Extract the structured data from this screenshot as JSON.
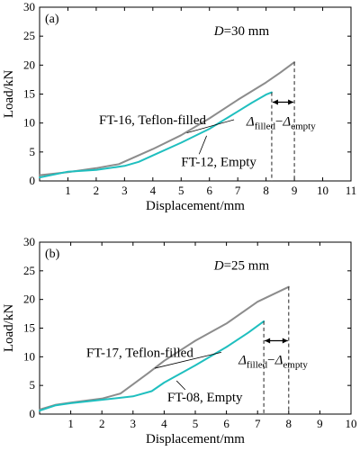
{
  "chart_data": [
    {
      "type": "line",
      "panel_tag": "(a)",
      "param_label": {
        "italic": "D",
        "rest": "=30 mm"
      },
      "xlabel": "Displacement/mm",
      "ylabel": "Load/kN",
      "xlim": [
        0,
        11
      ],
      "ylim": [
        0,
        30
      ],
      "xticks": [
        1,
        2,
        3,
        4,
        5,
        6,
        7,
        8,
        9,
        10,
        11
      ],
      "yticks": [
        0,
        5,
        10,
        15,
        20,
        25,
        30
      ],
      "series": [
        {
          "name": "FT-16, Teflon-filled",
          "color": "#8c8c8c",
          "points": [
            [
              0,
              1.0
            ],
            [
              1,
              1.5
            ],
            [
              2,
              2.2
            ],
            [
              2.8,
              2.9
            ],
            [
              3.3,
              4.0
            ],
            [
              4.0,
              5.5
            ],
            [
              5.0,
              7.9
            ],
            [
              6.0,
              10.8
            ],
            [
              7.0,
              14.0
            ],
            [
              8.0,
              17.0
            ],
            [
              8.5,
              18.7
            ],
            [
              9.0,
              20.5
            ]
          ],
          "end_x": 9.0
        },
        {
          "name": "FT-12, Empty",
          "color": "#1fbfbf",
          "points": [
            [
              0,
              0.6
            ],
            [
              1,
              1.6
            ],
            [
              2,
              1.9
            ],
            [
              3,
              2.6
            ],
            [
              3.5,
              3.3
            ],
            [
              4.0,
              4.4
            ],
            [
              5.0,
              6.6
            ],
            [
              6.0,
              9.0
            ],
            [
              7.0,
              12.0
            ],
            [
              7.5,
              13.5
            ],
            [
              8.0,
              14.9
            ],
            [
              8.2,
              15.3
            ]
          ],
          "end_x": 8.2
        }
      ],
      "series_labels": [
        {
          "text": "FT-16, Teflon-filled",
          "anchor": [
            5.2,
            8.3
          ],
          "label_at": [
            2.1,
            9.8
          ]
        },
        {
          "text": "FT-12, Empty",
          "anchor": [
            5.9,
            7.8
          ],
          "label_at": [
            5.0,
            2.6
          ]
        }
      ],
      "annotation": {
        "main": "Δ",
        "sub1": "filled",
        "minus": "−",
        "main2": "Δ",
        "sub2": "empty"
      }
    },
    {
      "type": "line",
      "panel_tag": "(b)",
      "param_label": {
        "italic": "D",
        "rest": "=25 mm"
      },
      "xlabel": "Displacement/mm",
      "ylabel": "Load/kN",
      "xlim": [
        0,
        10
      ],
      "ylim": [
        0,
        30
      ],
      "xticks": [
        1,
        2,
        3,
        4,
        5,
        6,
        7,
        8,
        9,
        10
      ],
      "yticks": [
        0,
        5,
        10,
        15,
        20,
        25,
        30
      ],
      "series": [
        {
          "name": "FT-17, Teflon-filled",
          "color": "#8c8c8c",
          "points": [
            [
              0,
              0.8
            ],
            [
              0.5,
              1.6
            ],
            [
              1,
              2.0
            ],
            [
              2,
              2.7
            ],
            [
              2.6,
              3.6
            ],
            [
              3.0,
              5.2
            ],
            [
              3.5,
              7.2
            ],
            [
              4.0,
              9.3
            ],
            [
              5.0,
              12.8
            ],
            [
              6.0,
              15.8
            ],
            [
              7.0,
              19.6
            ],
            [
              8.0,
              22.2
            ]
          ],
          "end_x": 8.0
        },
        {
          "name": "FT-08, Empty",
          "color": "#1fbfbf",
          "points": [
            [
              0,
              0.6
            ],
            [
              0.5,
              1.5
            ],
            [
              1,
              1.9
            ],
            [
              2,
              2.5
            ],
            [
              3,
              3.1
            ],
            [
              3.6,
              4.0
            ],
            [
              4.0,
              5.5
            ],
            [
              5.0,
              8.5
            ],
            [
              6.0,
              11.7
            ],
            [
              6.7,
              14.2
            ],
            [
              7.2,
              16.2
            ]
          ],
          "end_x": 7.2
        }
      ],
      "series_labels": [
        {
          "text": "FT-17, Teflon-filled",
          "anchor": [
            3.7,
            8.0
          ],
          "label_at": [
            1.5,
            10.0
          ]
        },
        {
          "text": "FT-08, Empty",
          "anchor": [
            4.4,
            5.8
          ],
          "label_at": [
            4.1,
            2.2
          ]
        }
      ],
      "annotation": {
        "main": "Δ",
        "sub1": "filled",
        "minus": "−",
        "main2": "Δ",
        "sub2": "empty"
      }
    }
  ]
}
